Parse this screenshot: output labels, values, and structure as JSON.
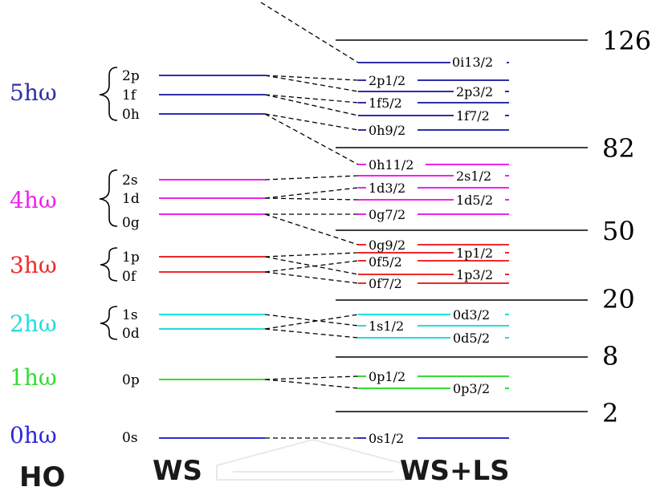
{
  "bottom_labels": {
    "ho": "HO",
    "ws": "WS",
    "wsls": "WS+LS"
  },
  "magic_numbers": [
    "126",
    "82",
    "50",
    "20",
    "8",
    "2"
  ],
  "shells": [
    {
      "label": "0hω",
      "color": "#2b2bd6",
      "ws": [
        "0s"
      ],
      "ls": [
        "0s1/2"
      ]
    },
    {
      "label": "1hω",
      "color": "#33dd33",
      "ws": [
        "0p"
      ],
      "ls": [
        "0p1/2",
        "0p3/2"
      ]
    },
    {
      "label": "2hω",
      "color": "#22dddd",
      "ws": [
        "1s",
        "0d"
      ],
      "ls": [
        "0d3/2",
        "1s1/2",
        "0d5/2"
      ]
    },
    {
      "label": "3hω",
      "color": "#ee2a2a",
      "ws": [
        "1p",
        "0f"
      ],
      "ls": [
        "0g9/2",
        "1p1/2",
        "0f5/2",
        "1p3/2",
        "0f7/2"
      ]
    },
    {
      "label": "4hω",
      "color": "#ee22ee",
      "ws": [
        "2s",
        "1d",
        "0g"
      ],
      "ls": [
        "0h11/2",
        "2s1/2",
        "1d3/2",
        "1d5/2",
        "0g7/2"
      ]
    },
    {
      "label": "5hω",
      "color": "#2f2fa8",
      "ws": [
        "2p",
        "1f",
        "0h"
      ],
      "ls": [
        "0i13/2",
        "2p1/2",
        "2p3/2",
        "1f5/2",
        "1f7/2",
        "0h9/2"
      ]
    }
  ]
}
